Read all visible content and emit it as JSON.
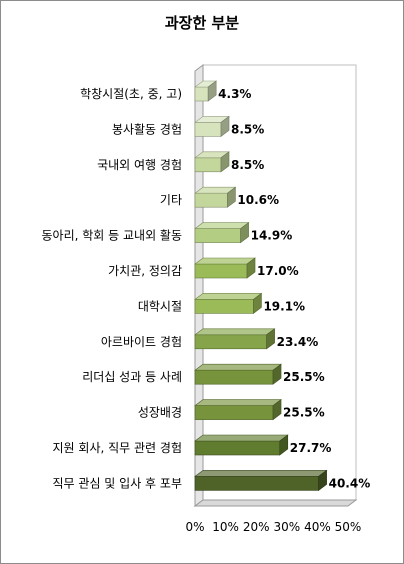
{
  "chart_data": {
    "type": "bar",
    "orientation": "horizontal",
    "title": "과장한 부분",
    "categories": [
      "학창시절(초, 중, 고)",
      "봉사활동 경험",
      "국내외 여행 경험",
      "기타",
      "동아리, 학회 등 교내외 활동",
      "가치관, 정의감",
      "대학시절",
      "아르바이트 경험",
      "리더십 성과 등 사례",
      "성장배경",
      "지원 회사, 직무 관련 경험",
      "직무 관심 및 입사 후 포부"
    ],
    "values": [
      4.3,
      8.5,
      8.5,
      10.6,
      14.9,
      17.0,
      19.1,
      23.4,
      25.5,
      25.5,
      27.7,
      40.4
    ],
    "value_labels": [
      "4.3%",
      "8.5%",
      "8.5%",
      "10.6%",
      "14.9%",
      "17.0%",
      "19.1%",
      "23.4%",
      "25.5%",
      "25.5%",
      "27.7%",
      "40.4%"
    ],
    "xlim": [
      0,
      50
    ],
    "xticks": [
      0,
      10,
      20,
      30,
      40,
      50
    ],
    "xtick_labels": [
      "0%",
      "10%",
      "20%",
      "30%",
      "40%",
      "50%"
    ],
    "xlabel": "",
    "ylabel": "",
    "grid": false,
    "bar_colors": [
      "#d6e3bc",
      "#d6e3bc",
      "#c3d69b",
      "#c3d69b",
      "#b3cd83",
      "#9bbb59",
      "#9bbb59",
      "#86a54a",
      "#77933c",
      "#77933c",
      "#607c2f",
      "#4f6228"
    ]
  }
}
